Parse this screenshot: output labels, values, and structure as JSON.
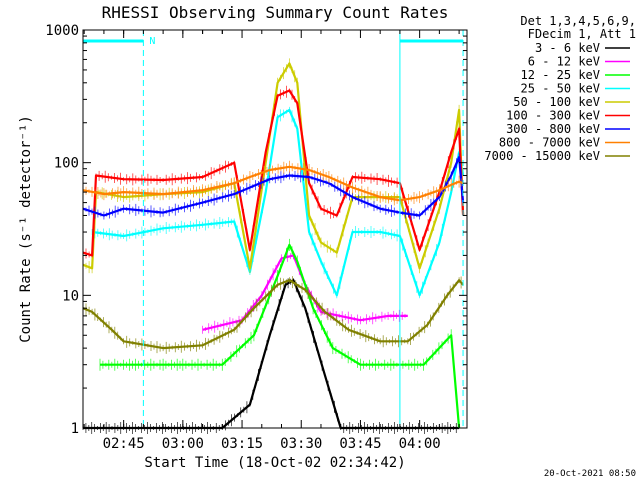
{
  "chart_data": {
    "type": "line",
    "title": "RHESSI Observing Summary Count Rates",
    "xlabel": "Start Time (18-Oct-02 02:34:42)",
    "ylabel": "Count Rate (s⁻¹ detector⁻¹)",
    "y_scale": "log",
    "ylim": [
      1,
      1000
    ],
    "xlim": [
      "02:34:42",
      "04:12:00"
    ],
    "x_ticks": [
      "02:45",
      "03:00",
      "03:15",
      "03:30",
      "03:45",
      "04:00"
    ],
    "y_ticks": [
      "1",
      "10",
      "100",
      "1000"
    ],
    "legend_header": [
      "Det 1,3,4,5,6,9,",
      "FDecim 1, Att 1"
    ],
    "legend_placement": "top-right, outside plot",
    "timestamp": "20-Oct-2021 08:50",
    "annotations": [
      {
        "text": "N",
        "time": "02:50",
        "kind": "night marker"
      }
    ],
    "bars": [
      {
        "start": "02:34:42",
        "end": "02:50:00"
      },
      {
        "start": "03:55:00",
        "end": "04:11:00"
      }
    ],
    "vlines": [
      {
        "time": "02:50:00",
        "style": "dashed"
      },
      {
        "time": "03:55:00",
        "style": "solid"
      },
      {
        "time": "04:11:00",
        "style": "dashed"
      }
    ],
    "series": [
      {
        "name": "3 - 6 keV",
        "color": "#000000",
        "points": [
          [
            "02:34:42",
            1
          ],
          [
            "02:45:00",
            1
          ],
          [
            "03:10:00",
            1
          ],
          [
            "03:17:00",
            1.5
          ],
          [
            "03:22:00",
            5
          ],
          [
            "03:26:00",
            12
          ],
          [
            "03:28:00",
            13
          ],
          [
            "03:31:00",
            8
          ],
          [
            "03:36:00",
            2.5
          ],
          [
            "03:40:00",
            1
          ],
          [
            "04:05:00",
            1
          ],
          [
            "04:10:00",
            1
          ]
        ]
      },
      {
        "name": "6 - 12 keV",
        "color": "#ff00ff",
        "points": [
          [
            "03:05:00",
            5.5
          ],
          [
            "03:15:00",
            6.5
          ],
          [
            "03:20:00",
            10
          ],
          [
            "03:25:00",
            19
          ],
          [
            "03:28:00",
            20
          ],
          [
            "03:31:00",
            12
          ],
          [
            "03:35:00",
            7.5
          ],
          [
            "03:45:00",
            6.5
          ],
          [
            "03:52:00",
            7
          ],
          [
            "03:57:00",
            7
          ]
        ]
      },
      {
        "name": "12 - 25 keV",
        "color": "#00ff00",
        "points": [
          [
            "02:39:00",
            3
          ],
          [
            "02:48:00",
            3
          ],
          [
            "02:55:00",
            3
          ],
          [
            "03:00:00",
            3
          ],
          [
            "03:10:00",
            3
          ],
          [
            "03:18:00",
            5
          ],
          [
            "03:24:00",
            14
          ],
          [
            "03:27:00",
            24
          ],
          [
            "03:29:00",
            18
          ],
          [
            "03:33:00",
            8
          ],
          [
            "03:38:00",
            4
          ],
          [
            "03:45:00",
            3
          ],
          [
            "03:55:00",
            3
          ],
          [
            "04:01:00",
            3
          ],
          [
            "04:08:00",
            5
          ],
          [
            "04:10:00",
            1
          ]
        ]
      },
      {
        "name": "25 - 50 keV",
        "color": "#00ffff",
        "points": [
          [
            "02:37:00",
            30
          ],
          [
            "02:45:00",
            28
          ],
          [
            "02:55:00",
            32
          ],
          [
            "03:05:00",
            34
          ],
          [
            "03:13:00",
            36
          ],
          [
            "03:17:00",
            15
          ],
          [
            "03:21:00",
            60
          ],
          [
            "03:24:00",
            220
          ],
          [
            "03:27:00",
            250
          ],
          [
            "03:29:00",
            180
          ],
          [
            "03:32:00",
            30
          ],
          [
            "03:35:00",
            18
          ],
          [
            "03:39:00",
            10
          ],
          [
            "03:43:00",
            30
          ],
          [
            "03:50:00",
            30
          ],
          [
            "03:55:00",
            28
          ],
          [
            "04:00:00",
            10
          ],
          [
            "04:05:00",
            25
          ],
          [
            "04:08:00",
            60
          ],
          [
            "04:10:00",
            120
          ],
          [
            "04:11:00",
            80
          ]
        ]
      },
      {
        "name": "50 - 100 keV",
        "color": "#cccc00",
        "points": [
          [
            "02:34:42",
            17
          ],
          [
            "02:37:00",
            16
          ],
          [
            "02:38:00",
            60
          ],
          [
            "02:45:00",
            55
          ],
          [
            "02:55:00",
            58
          ],
          [
            "03:05:00",
            60
          ],
          [
            "03:13:00",
            70
          ],
          [
            "03:17:00",
            16
          ],
          [
            "03:21:00",
            100
          ],
          [
            "03:24:00",
            400
          ],
          [
            "03:27:00",
            560
          ],
          [
            "03:29:00",
            400
          ],
          [
            "03:32:00",
            40
          ],
          [
            "03:35:00",
            25
          ],
          [
            "03:39:00",
            21
          ],
          [
            "03:43:00",
            55
          ],
          [
            "03:50:00",
            55
          ],
          [
            "03:55:00",
            55
          ],
          [
            "04:00:00",
            16
          ],
          [
            "04:05:00",
            45
          ],
          [
            "04:08:00",
            100
          ],
          [
            "04:10:00",
            250
          ],
          [
            "04:11:00",
            40
          ]
        ]
      },
      {
        "name": "100 - 300 keV",
        "color": "#ff0000",
        "points": [
          [
            "02:34:42",
            21
          ],
          [
            "02:37:00",
            20
          ],
          [
            "02:38:00",
            80
          ],
          [
            "02:45:00",
            75
          ],
          [
            "02:55:00",
            74
          ],
          [
            "03:05:00",
            78
          ],
          [
            "03:13:00",
            100
          ],
          [
            "03:17:00",
            22
          ],
          [
            "03:21:00",
            120
          ],
          [
            "03:24:00",
            320
          ],
          [
            "03:27:00",
            350
          ],
          [
            "03:29:00",
            280
          ],
          [
            "03:32:00",
            70
          ],
          [
            "03:35:00",
            45
          ],
          [
            "03:39:00",
            40
          ],
          [
            "03:43:00",
            78
          ],
          [
            "03:50:00",
            75
          ],
          [
            "03:55:00",
            70
          ],
          [
            "04:00:00",
            22
          ],
          [
            "04:05:00",
            60
          ],
          [
            "04:08:00",
            120
          ],
          [
            "04:10:00",
            180
          ],
          [
            "04:11:00",
            40
          ]
        ]
      },
      {
        "name": "300 - 800 keV",
        "color": "#0000ff",
        "points": [
          [
            "02:34:42",
            45
          ],
          [
            "02:40:00",
            40
          ],
          [
            "02:45:00",
            45
          ],
          [
            "02:55:00",
            42
          ],
          [
            "03:05:00",
            50
          ],
          [
            "03:13:00",
            58
          ],
          [
            "03:17:00",
            65
          ],
          [
            "03:22:00",
            75
          ],
          [
            "03:27:00",
            80
          ],
          [
            "03:32:00",
            78
          ],
          [
            "03:37:00",
            70
          ],
          [
            "03:43:00",
            55
          ],
          [
            "03:50:00",
            45
          ],
          [
            "03:55:00",
            42
          ],
          [
            "04:00:00",
            40
          ],
          [
            "04:05:00",
            55
          ],
          [
            "04:08:00",
            80
          ],
          [
            "04:10:00",
            110
          ],
          [
            "04:11:00",
            50
          ]
        ]
      },
      {
        "name": "800 - 7000 keV",
        "color": "#ff8000",
        "points": [
          [
            "02:34:42",
            62
          ],
          [
            "02:40:00",
            58
          ],
          [
            "02:45:00",
            60
          ],
          [
            "02:55:00",
            58
          ],
          [
            "03:05:00",
            62
          ],
          [
            "03:13:00",
            70
          ],
          [
            "03:17:00",
            78
          ],
          [
            "03:22:00",
            88
          ],
          [
            "03:27:00",
            93
          ],
          [
            "03:32:00",
            88
          ],
          [
            "03:37:00",
            78
          ],
          [
            "03:43:00",
            65
          ],
          [
            "03:50:00",
            55
          ],
          [
            "03:55:00",
            52
          ],
          [
            "04:00:00",
            55
          ],
          [
            "04:05:00",
            62
          ],
          [
            "04:08:00",
            68
          ],
          [
            "04:10:00",
            72
          ],
          [
            "04:11:00",
            70
          ]
        ]
      },
      {
        "name": "7000 - 15000 keV",
        "color": "#808000",
        "points": [
          [
            "02:34:42",
            8
          ],
          [
            "02:37:00",
            7.5
          ],
          [
            "02:42:00",
            5.5
          ],
          [
            "02:45:00",
            4.5
          ],
          [
            "02:55:00",
            4
          ],
          [
            "03:05:00",
            4.2
          ],
          [
            "03:13:00",
            5.5
          ],
          [
            "03:18:00",
            8
          ],
          [
            "03:24:00",
            12
          ],
          [
            "03:27:00",
            13
          ],
          [
            "03:31:00",
            11
          ],
          [
            "03:36:00",
            7.5
          ],
          [
            "03:42:00",
            5.5
          ],
          [
            "03:50:00",
            4.5
          ],
          [
            "03:57:00",
            4.5
          ],
          [
            "04:02:00",
            6
          ],
          [
            "04:07:00",
            10
          ],
          [
            "04:10:00",
            13
          ],
          [
            "04:11:00",
            12
          ]
        ]
      }
    ]
  }
}
